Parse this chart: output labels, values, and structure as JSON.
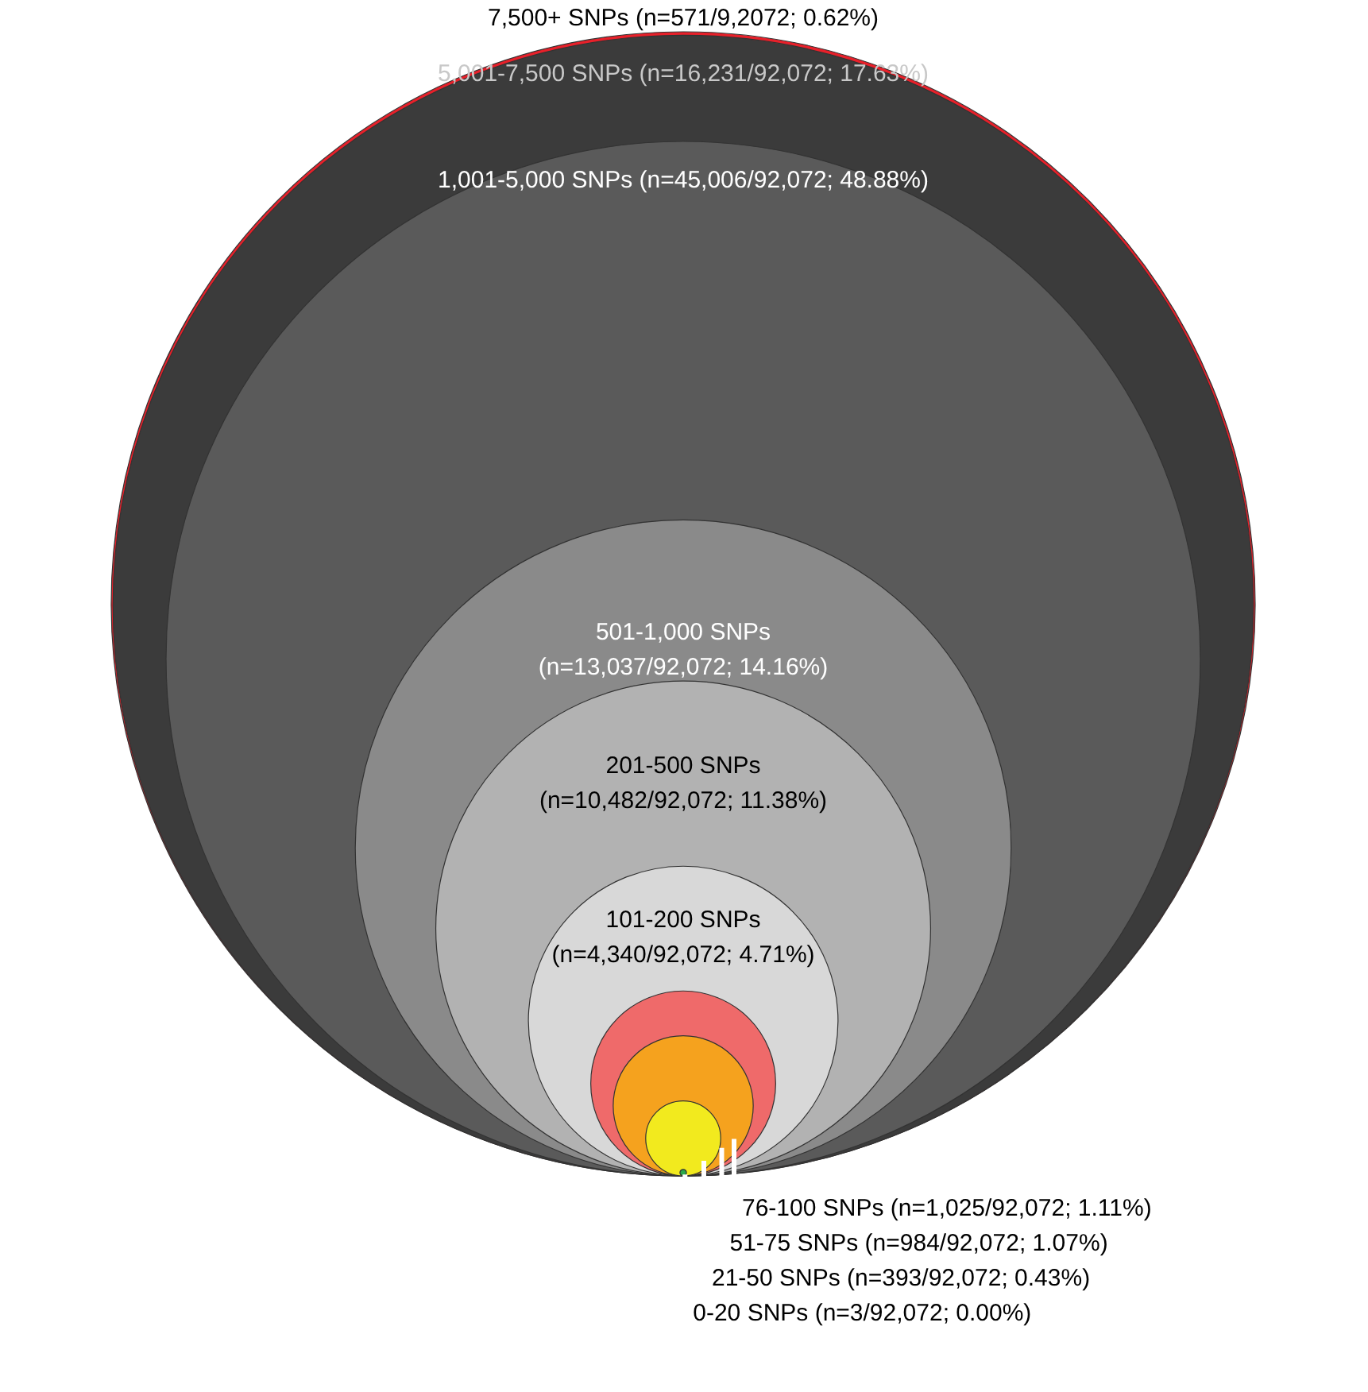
{
  "chart_data": {
    "type": "other",
    "categories": [
      "7,500+ SNPs",
      "5,001-7,500 SNPs",
      "1,001-5,000 SNPs",
      "501-1,000 SNPs",
      "201-500 SNPs",
      "101-200 SNPs",
      "76-100 SNPs",
      "51-75 SNPs",
      "21-50 SNPs",
      "0-20 SNPs"
    ],
    "values": [
      571,
      16231,
      45006,
      13037,
      10482,
      4340,
      1025,
      984,
      393,
      3
    ],
    "value_labels": [
      "(n=571/9,2072; 0.62%)",
      "(n=16,231/92,072; 17.63%)",
      "(n=45,006/92,072; 48.88%)",
      "(n=13,037/92,072; 14.16%)",
      "(n=10,482/92,072; 11.38%)",
      "(n=4,340/92,072; 4.71%)",
      "(n=1,025/92,072; 1.11%)",
      "(n=984/92,072; 1.07%)",
      "(n=393/92,072; 0.43%)",
      "(n=3/92,072; 0.00%)"
    ],
    "colors": [
      "#e8202a",
      "#3b3b3b",
      "#5a5a5a",
      "#8a8a8a",
      "#b2b2b2",
      "#d8d8d8",
      "#ef6a6a",
      "#f5a21e",
      "#f2ea1e",
      "#2aa84a"
    ]
  }
}
